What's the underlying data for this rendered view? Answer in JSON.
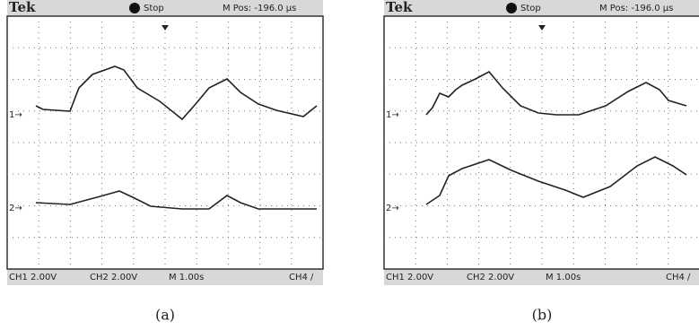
{
  "panels": [
    {
      "header": {
        "brand": "Tek",
        "status": "Stop",
        "position": "M Pos: -196.0 µs"
      },
      "footer": {
        "ch1": "CH1 2.00V",
        "ch2": "CH2 2.00V",
        "timebase": "M 1.00s",
        "ch4": "CH4 ∕"
      },
      "markers": [
        "1→",
        "2→"
      ],
      "caption": "(a)"
    },
    {
      "header": {
        "brand": "Tek",
        "status": "Stop",
        "position": "M Pos: -196.0 µs"
      },
      "footer": {
        "ch1": "CH1 2.00V",
        "ch2": "CH2 2.00V",
        "timebase": "M 1.00s",
        "ch4": "CH4 ∕"
      },
      "markers": [
        "1→",
        "2→"
      ],
      "caption": "(b)"
    }
  ]
}
